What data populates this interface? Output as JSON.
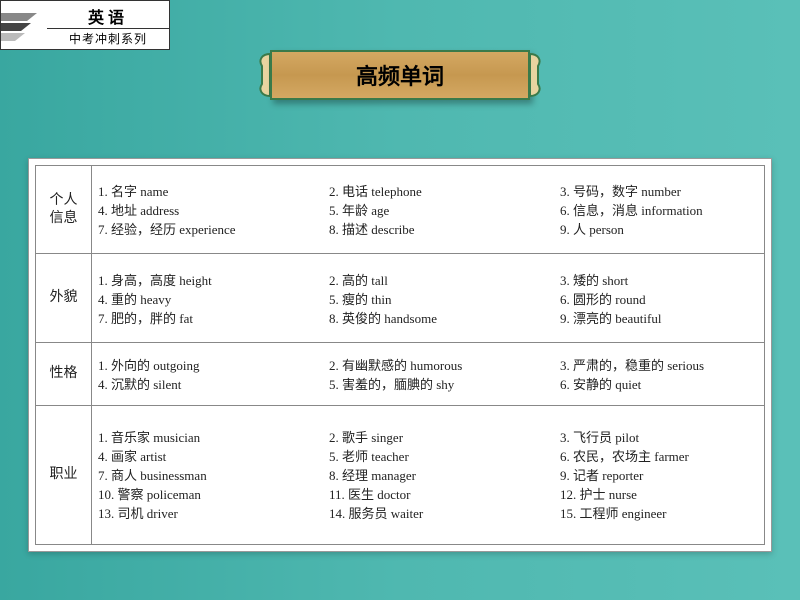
{
  "logo": {
    "title": "英语",
    "subtitle": "中考冲刺系列"
  },
  "banner": "高频单词",
  "colors": {
    "bg_from": "#39a7a0",
    "bg_to": "#5ac0b8",
    "banner_bg": "#c69850",
    "banner_border": "#3a7a4a",
    "table_bg": "#ffffff",
    "border": "#888888",
    "text": "#222222"
  },
  "table": {
    "categories": [
      {
        "label": "个人\n信息",
        "rows": [
          [
            "1. 名字 name",
            "2. 电话 telephone",
            "3. 号码，数字 number"
          ],
          [
            "4. 地址 address",
            "5. 年龄 age",
            "6. 信息，消息 information"
          ],
          [
            "7. 经验，经历 experience",
            "8. 描述 describe",
            "9. 人 person"
          ]
        ]
      },
      {
        "label": "外貌",
        "rows": [
          [
            "1. 身高，高度 height",
            "2. 高的 tall",
            "3. 矮的 short"
          ],
          [
            "4. 重的 heavy",
            "5. 瘦的 thin",
            "6. 圆形的 round"
          ],
          [
            "7. 肥的，胖的 fat",
            "8. 英俊的 handsome",
            "9. 漂亮的 beautiful"
          ]
        ]
      },
      {
        "label": "性格",
        "rows": [
          [
            "1. 外向的 outgoing",
            "2. 有幽默感的 humorous",
            "3. 严肃的，稳重的 serious"
          ],
          [
            "4. 沉默的 silent",
            "5. 害羞的，腼腆的 shy",
            "   6. 安静的 quiet"
          ]
        ]
      },
      {
        "label": "职业",
        "rows": [
          [
            "1. 音乐家 musician",
            "2. 歌手 singer",
            "3. 飞行员 pilot"
          ],
          [
            "4. 画家 artist",
            "5. 老师 teacher",
            "6. 农民，农场主 farmer"
          ],
          [
            "7. 商人 businessman",
            "8. 经理 manager",
            "9. 记者 reporter"
          ],
          [
            "10. 警察 policeman",
            "11. 医生 doctor",
            "12. 护士 nurse"
          ],
          [
            "13. 司机 driver",
            "14. 服务员 waiter",
            "15. 工程师 engineer"
          ]
        ]
      }
    ]
  }
}
